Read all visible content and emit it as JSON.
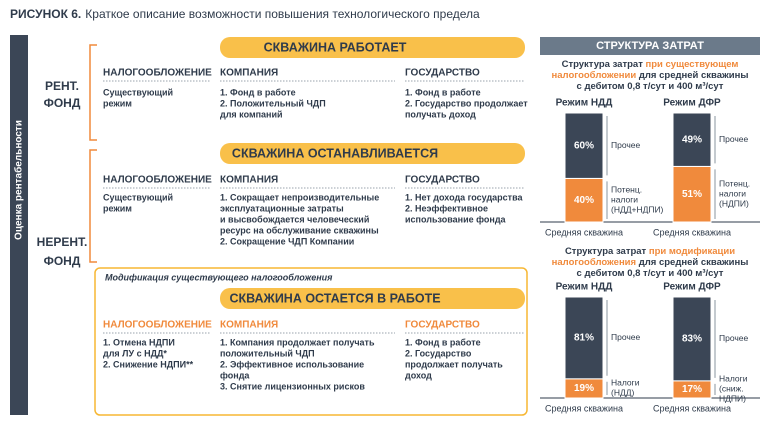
{
  "header": {
    "title": "РИСУНОК 6.",
    "subtitle": "Краткое описание возможности повышения технологического предела"
  },
  "side_label": "Оценка рентабельности",
  "groups": [
    {
      "label": [
        "РЕНТ.",
        "ФОНД"
      ]
    },
    {
      "label": [
        "НЕРЕНТ.",
        "ФОНД"
      ]
    }
  ],
  "sections": [
    {
      "title": "СКВАЖИНА РАБОТАЕТ",
      "columns": [
        {
          "heading": "НАЛОГООБЛОЖЕНИЕ",
          "lines": [
            "Существующий",
            "режим"
          ]
        },
        {
          "heading": "КОМПАНИЯ",
          "lines": [
            "1. Фонд в работе",
            "2. Положительный ЧДП",
            "для компаний"
          ]
        },
        {
          "heading": "ГОСУДАРСТВО",
          "lines": [
            "1. Фонд в работе",
            "2. Государство продолжает",
            "получать доход"
          ]
        }
      ]
    },
    {
      "title": "СКВАЖИНА ОСТАНАВЛИВАЕТСЯ",
      "columns": [
        {
          "heading": "НАЛОГООБЛОЖЕНИЕ",
          "lines": [
            "Существующий",
            "режим"
          ]
        },
        {
          "heading": "КОМПАНИЯ",
          "lines": [
            "1. Сокращает непроизводительные",
            "эксплуатационные затраты",
            "и высвобождается человеческий",
            "ресурс на обслуживание скважины",
            "2. Сокращение ЧДП Компании"
          ]
        },
        {
          "heading": "ГОСУДАРСТВО",
          "lines": [
            "1. Нет дохода государства",
            "2. Неэффективное",
            "использование фонда"
          ]
        }
      ]
    },
    {
      "note": "Модификация существующего налогообложения",
      "title": "СКВАЖИНА ОСТАЕТСЯ В РАБОТЕ",
      "columns": [
        {
          "heading": "НАЛОГООБЛОЖЕНИЕ",
          "lines": [
            "1. Отмена НДПИ",
            "для ЛУ с НДД*",
            "2. Снижение НДПИ**"
          ]
        },
        {
          "heading": "КОМПАНИЯ",
          "lines": [
            "1. Компания продолжает получать",
            "положительный ЧДП",
            "2. Эффективное использование",
            "фонда",
            "3. Снятие лицензионных рисков"
          ]
        },
        {
          "heading": "ГОСУДАРСТВО",
          "lines": [
            "1. Фонд в работе",
            "2. Государство",
            "продолжает получать",
            "доход"
          ]
        }
      ]
    }
  ],
  "cost_structure": {
    "title": "СТРУКТУРА ЗАТРАТ",
    "colors": {
      "other": "#3b4656",
      "tax": "#f08a3c",
      "accent": "#f08a3c"
    },
    "blocks": [
      {
        "caption": [
          [
            {
              "text": "Структура затрат "
            },
            {
              "text": "при существующем",
              "accent": true
            }
          ],
          [
            {
              "text": "налогообложении",
              "accent": true
            },
            {
              "text": " для средней скважины"
            }
          ],
          [
            {
              "text": "с дебитом 0,8 т/сут и 400 м³/сут"
            }
          ]
        ],
        "bars": [
          {
            "mode": "Режим НДД",
            "base_label": "Средняя скважина",
            "segments": [
              {
                "kind": "tax",
                "value": 40,
                "label": "40%",
                "name": [
                  "Потенц.",
                  "налоги",
                  "(НДД+НДПИ)"
                ]
              },
              {
                "kind": "other",
                "value": 60,
                "label": "60%",
                "name": [
                  "Прочее"
                ]
              }
            ]
          },
          {
            "mode": "Режим ДФР",
            "base_label": "Средняя скважина",
            "segments": [
              {
                "kind": "tax",
                "value": 51,
                "label": "51%",
                "name": [
                  "Потенц.",
                  "налоги",
                  "(НДПИ)"
                ]
              },
              {
                "kind": "other",
                "value": 49,
                "label": "49%",
                "name": [
                  "Прочее"
                ]
              }
            ]
          }
        ]
      },
      {
        "caption": [
          [
            {
              "text": "Структура затрат "
            },
            {
              "text": "при модификации",
              "accent": true
            }
          ],
          [
            {
              "text": "налогообложения",
              "accent": true
            },
            {
              "text": " для средней скважины"
            }
          ],
          [
            {
              "text": "с дебитом 0,8 т/сут и 400 м³/сут"
            }
          ]
        ],
        "bars": [
          {
            "mode": "Режим НДД",
            "base_label": "Средняя скважина",
            "segments": [
              {
                "kind": "tax",
                "value": 19,
                "label": "19%",
                "name": [
                  "Налоги",
                  "(НДД)"
                ]
              },
              {
                "kind": "other",
                "value": 81,
                "label": "81%",
                "name": [
                  "Прочее"
                ]
              }
            ]
          },
          {
            "mode": "Режим ДФР",
            "base_label": "Средняя скважина",
            "segments": [
              {
                "kind": "tax",
                "value": 17,
                "label": "17%",
                "name": [
                  "Налоги",
                  "(сниж.",
                  "НДПИ)"
                ]
              },
              {
                "kind": "other",
                "value": 83,
                "label": "83%",
                "name": [
                  "Прочее"
                ]
              }
            ]
          }
        ]
      }
    ]
  }
}
